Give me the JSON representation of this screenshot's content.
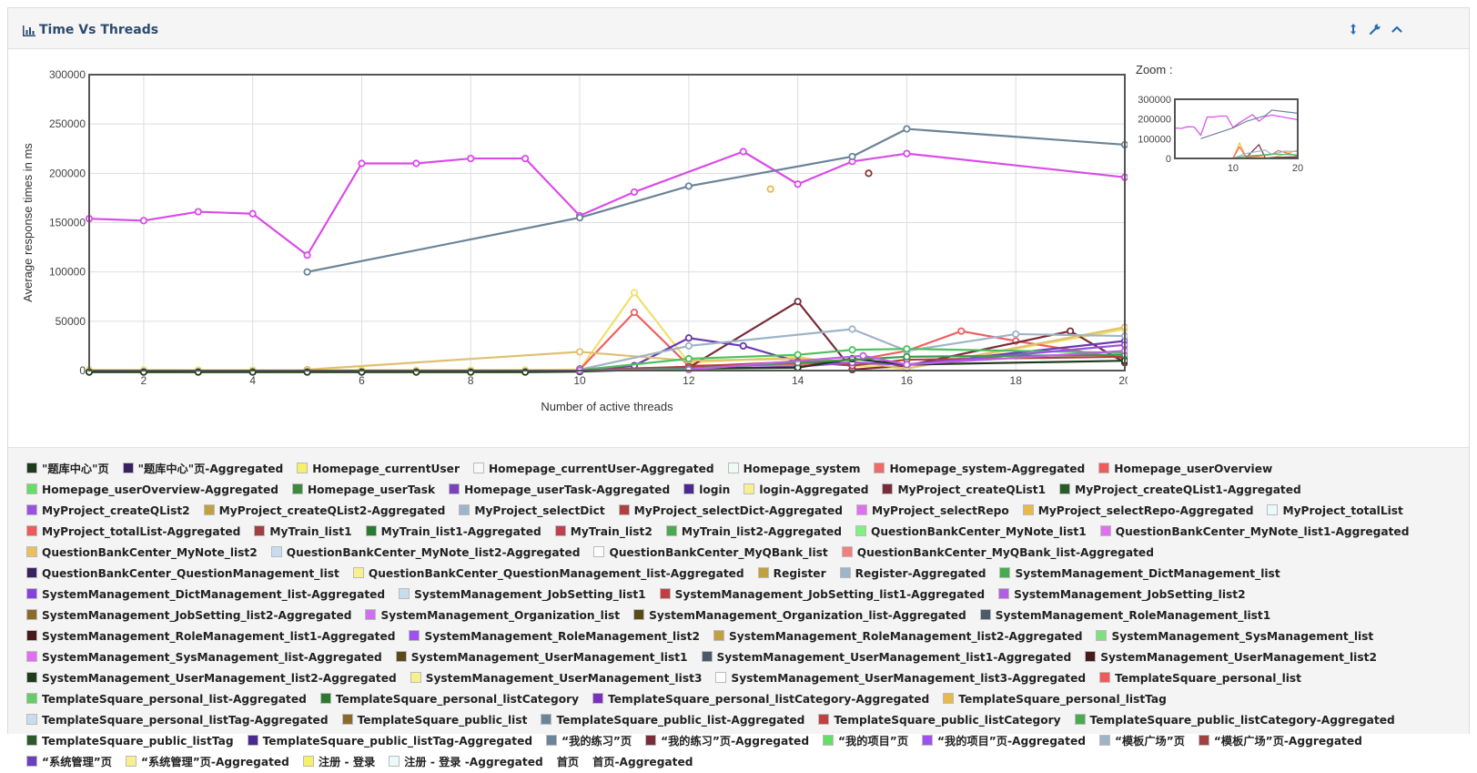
{
  "panel": {
    "title": "Time Vs Threads"
  },
  "zoom_label": "Zoom :",
  "chart_data": [
    {
      "type": "line",
      "xlabel": "Number of active threads",
      "ylabel": "Average response times in ms",
      "xlim": [
        1,
        20
      ],
      "ylim": [
        0,
        300000
      ],
      "xticks": [
        2,
        4,
        6,
        8,
        10,
        12,
        14,
        16,
        18,
        20
      ],
      "xtick_labels": [
        "2",
        "4",
        "6",
        "8",
        "10",
        "12",
        "14",
        "16",
        "18",
        "20"
      ],
      "yticks": [
        0,
        50000,
        100000,
        150000,
        200000,
        250000,
        300000
      ],
      "ytick_labels": [
        "0",
        "50000",
        "100000",
        "150000",
        "200000",
        "250000",
        "300000"
      ],
      "grid": true,
      "series": [
        {
          "name": "MyProject_selectRepo",
          "color": "#d94ce8",
          "x": [
            1,
            2,
            3,
            4,
            5,
            6,
            7,
            8,
            9,
            10,
            11,
            13,
            14,
            15,
            16,
            20
          ],
          "y": [
            154000,
            152000,
            161000,
            159000,
            117000,
            210000,
            210000,
            215000,
            215000,
            157000,
            181000,
            222000,
            189000,
            212000,
            220000,
            196000
          ]
        },
        {
          "name": "Register-Aggregated",
          "color": "#6b8498",
          "x": [
            5,
            10,
            12,
            15,
            16,
            20
          ],
          "y": [
            100000,
            155000,
            187000,
            217000,
            245000,
            229000
          ]
        },
        {
          "name": "MyProject_selectRepo-Aggregated",
          "color": "#e8b84a",
          "x": [
            13.5
          ],
          "y": [
            184000
          ]
        },
        {
          "name": "MyTrain_list1",
          "color": "#8b3333",
          "x": [
            15.3
          ],
          "y": [
            200000
          ]
        },
        {
          "name": "login-Aggregated",
          "color": "#f0e06a",
          "x": [
            1,
            2,
            3,
            4,
            5,
            6,
            7,
            8,
            9,
            10,
            11,
            12,
            14,
            15,
            16,
            20
          ],
          "y": [
            800,
            600,
            500,
            400,
            300,
            500,
            400,
            500,
            600,
            1200,
            79000,
            8000,
            14000,
            5000,
            2000,
            42000
          ]
        },
        {
          "name": "Homepage_userOverview",
          "color": "#f06060",
          "x": [
            10,
            11,
            12,
            14,
            15,
            16,
            17,
            18,
            20
          ],
          "y": [
            1000,
            59000,
            5000,
            6000,
            10000,
            20000,
            40000,
            30000,
            12000
          ]
        },
        {
          "name": "MyProject_createQList1",
          "color": "#7a2c3a",
          "x": [
            10,
            12,
            14,
            15,
            16,
            19,
            20
          ],
          "y": [
            1500,
            3000,
            70000,
            1000,
            5000,
            40000,
            8000
          ]
        },
        {
          "name": "Homepage_userTask-Aggregated",
          "color": "#6a3ab0",
          "x": [
            10,
            11,
            12,
            13,
            14,
            15,
            16,
            20
          ],
          "y": [
            1000,
            5000,
            33000,
            25000,
            9000,
            8000,
            6000,
            30000
          ]
        },
        {
          "name": "Register",
          "color": "#e0c070",
          "x": [
            5,
            10,
            12,
            14,
            15,
            16,
            20
          ],
          "y": [
            1000,
            19000,
            10000,
            12000,
            9000,
            2000,
            44000
          ]
        },
        {
          "name": "SystemManagement_JobSetting_list1",
          "color": "#9fb4c8",
          "x": [
            10,
            12,
            15,
            16,
            18,
            20
          ],
          "y": [
            1000,
            25000,
            42000,
            20000,
            37000,
            35000
          ]
        },
        {
          "name": "MyTrain_list1-Aggregated",
          "color": "#4ec060",
          "x": [
            10,
            12,
            14,
            15,
            16,
            20
          ],
          "y": [
            500,
            12000,
            16000,
            21000,
            22000,
            18000
          ]
        },
        {
          "name": "MyProject_selectDict-Aggregated",
          "color": "#b04040",
          "x": [
            10,
            12,
            14,
            15,
            16,
            20
          ],
          "y": [
            300,
            4000,
            9000,
            5000,
            11000,
            14000
          ]
        },
        {
          "name": "MyProject_createQList2",
          "color": "#9a50e0",
          "x": [
            10,
            12,
            14,
            15,
            16,
            20
          ],
          "y": [
            200,
            2000,
            4000,
            8000,
            6000,
            26000
          ]
        },
        {
          "name": "\"题库中心\"页",
          "color": "#1d3a1d",
          "x": [
            1,
            2,
            3,
            4,
            5,
            6,
            7,
            8,
            9,
            10,
            12,
            14,
            15,
            16,
            20
          ],
          "y": [
            -1500,
            -1500,
            -1500,
            -1500,
            -1500,
            -1500,
            -1500,
            -1500,
            -1500,
            -1000,
            2000,
            3000,
            12000,
            6000,
            10000
          ]
        },
        {
          "name": "SystemManagement_DictManagement_list",
          "color": "#3a9a50",
          "x": [
            10,
            12,
            14,
            16,
            20
          ],
          "y": [
            200,
            2000,
            8000,
            14000,
            16000
          ]
        },
        {
          "name": "SystemManagement_SysManagement_list-Aggregated",
          "color": "#c060e0",
          "x": [
            10,
            12,
            15.2,
            16,
            20
          ],
          "y": [
            100,
            1000,
            15000,
            6000,
            20000
          ]
        }
      ]
    },
    {
      "type": "line",
      "xlim": [
        1,
        20
      ],
      "ylim": [
        0,
        300000
      ],
      "xticks": [
        10,
        20
      ],
      "xtick_labels": [
        "10",
        "20"
      ],
      "yticks": [
        0,
        100000,
        200000,
        300000
      ],
      "ytick_labels": [
        "0",
        "100000",
        "200000",
        "300000"
      ],
      "series": [
        {
          "name": "MyProject_selectRepo",
          "color": "#d94ce8",
          "x": [
            1,
            2,
            3,
            4,
            5,
            6,
            7,
            8,
            9,
            10,
            11,
            13,
            14,
            15,
            16,
            20
          ],
          "y": [
            154000,
            152000,
            161000,
            159000,
            117000,
            210000,
            210000,
            215000,
            215000,
            157000,
            181000,
            222000,
            189000,
            212000,
            220000,
            196000
          ]
        },
        {
          "name": "Register-Aggregated",
          "color": "#6b8498",
          "x": [
            5,
            10,
            12,
            15,
            16,
            20
          ],
          "y": [
            100000,
            155000,
            187000,
            217000,
            245000,
            229000
          ]
        },
        {
          "name": "login-Aggregated",
          "color": "#f0c040",
          "x": [
            1,
            5,
            10,
            11,
            12,
            15,
            16,
            20
          ],
          "y": [
            800,
            300,
            1200,
            79000,
            8000,
            5000,
            2000,
            42000
          ]
        },
        {
          "name": "MyProject_createQList1",
          "color": "#7a2c3a",
          "x": [
            10,
            12,
            14,
            15,
            16,
            20
          ],
          "y": [
            1500,
            3000,
            70000,
            1000,
            5000,
            8000
          ]
        },
        {
          "name": "Homepage_userOverview",
          "color": "#f06060",
          "x": [
            10,
            11,
            12,
            16,
            17,
            20
          ],
          "y": [
            1000,
            59000,
            5000,
            20000,
            40000,
            12000
          ]
        },
        {
          "name": "SystemManagement_JobSetting_list1",
          "color": "#9fb4c8",
          "x": [
            10,
            12,
            15,
            16,
            18,
            20
          ],
          "y": [
            1000,
            25000,
            42000,
            20000,
            37000,
            35000
          ]
        },
        {
          "name": "MyTrain_list1-Aggregated",
          "color": "#4ec060",
          "x": [
            10,
            12,
            14,
            16,
            20
          ],
          "y": [
            500,
            12000,
            16000,
            22000,
            18000
          ]
        }
      ]
    }
  ],
  "legend": [
    {
      "label": "\"题库中心\"页",
      "color": "#1d3a1d"
    },
    {
      "label": "\"题库中心\"页-Aggregated",
      "color": "#3a2060"
    },
    {
      "label": "Homepage_currentUser",
      "color": "#f5ef6a"
    },
    {
      "label": "Homepage_currentUser-Aggregated",
      "color": "#f8f8f8"
    },
    {
      "label": "Homepage_system",
      "color": "#f0faf5"
    },
    {
      "label": "Homepage_system-Aggregated",
      "color": "#f06a6a"
    },
    {
      "label": "Homepage_userOverview",
      "color": "#f05a5a"
    },
    {
      "label": "Homepage_userOverview-Aggregated",
      "color": "#66dd66"
    },
    {
      "label": "Homepage_userTask",
      "color": "#3a8a40"
    },
    {
      "label": "Homepage_userTask-Aggregated",
      "color": "#7a40c0"
    },
    {
      "label": "login",
      "color": "#4a2a90"
    },
    {
      "label": "login-Aggregated",
      "color": "#f8f090"
    },
    {
      "label": "MyProject_createQList1",
      "color": "#7a2c3a"
    },
    {
      "label": "MyProject_createQList1-Aggregated",
      "color": "#2a5a2a"
    },
    {
      "label": "MyProject_createQList2",
      "color": "#9a50e0"
    },
    {
      "label": "MyProject_createQList2-Aggregated",
      "color": "#c0a040"
    },
    {
      "label": "MyProject_selectDict",
      "color": "#9fb4c8"
    },
    {
      "label": "MyProject_selectDict-Aggregated",
      "color": "#b04040"
    },
    {
      "label": "MyProject_selectRepo",
      "color": "#e070f0"
    },
    {
      "label": "MyProject_selectRepo-Aggregated",
      "color": "#e8b84a"
    },
    {
      "label": "MyProject_totalList",
      "color": "#e8fafa"
    },
    {
      "label": "MyProject_totalList-Aggregated",
      "color": "#f05a5a"
    },
    {
      "label": "MyTrain_list1",
      "color": "#a04040"
    },
    {
      "label": "MyTrain_list1-Aggregated",
      "color": "#2a7a30"
    },
    {
      "label": "MyTrain_list2",
      "color": "#c04050"
    },
    {
      "label": "MyTrain_list2-Aggregated",
      "color": "#4aaa50"
    },
    {
      "label": "QuestionBankCenter_MyNote_list1",
      "color": "#80f080"
    },
    {
      "label": "QuestionBankCenter_MyNote_list1-Aggregated",
      "color": "#e070f0"
    },
    {
      "label": "QuestionBankCenter_MyNote_list2",
      "color": "#e8c060"
    },
    {
      "label": "QuestionBankCenter_MyNote_list2-Aggregated",
      "color": "#c8dcf0"
    },
    {
      "label": "QuestionBankCenter_MyQBank_list",
      "color": "#ffffff"
    },
    {
      "label": "QuestionBankCenter_MyQBank_list-Aggregated",
      "color": "#f08080"
    },
    {
      "label": "QuestionBankCenter_QuestionManagement_list",
      "color": "#3a2060"
    },
    {
      "label": "QuestionBankCenter_QuestionManagement_list-Aggregated",
      "color": "#f8f090"
    },
    {
      "label": "Register",
      "color": "#c0a040"
    },
    {
      "label": "Register-Aggregated",
      "color": "#9fb4c8"
    },
    {
      "label": "SystemManagement_DictManagement_list",
      "color": "#4aaa50"
    },
    {
      "label": "SystemManagement_DictManagement_list-Aggregated",
      "color": "#8a40e0"
    },
    {
      "label": "SystemManagement_JobSetting_list1",
      "color": "#c8dcf0"
    },
    {
      "label": "SystemManagement_JobSetting_list1-Aggregated",
      "color": "#c04040"
    },
    {
      "label": "SystemManagement_JobSetting_list2",
      "color": "#b060e0"
    },
    {
      "label": "SystemManagement_JobSetting_list2-Aggregated",
      "color": "#8a6a2a"
    },
    {
      "label": "SystemManagement_Organization_list",
      "color": "#d070f0"
    },
    {
      "label": "SystemManagement_Organization_list-Aggregated",
      "color": "#5a4a1a"
    },
    {
      "label": "SystemManagement_RoleManagement_list1",
      "color": "#4a5a6a"
    },
    {
      "label": "SystemManagement_RoleManagement_list1-Aggregated",
      "color": "#4a1a1a"
    },
    {
      "label": "SystemManagement_RoleManagement_list2",
      "color": "#a050f0"
    },
    {
      "label": "SystemManagement_RoleManagement_list2-Aggregated",
      "color": "#c0a040"
    },
    {
      "label": "SystemManagement_SysManagement_list",
      "color": "#80e080"
    },
    {
      "label": "SystemManagement_SysManagement_list-Aggregated",
      "color": "#e070f0"
    },
    {
      "label": "SystemManagement_UserManagement_list1",
      "color": "#5a4a1a"
    },
    {
      "label": "SystemManagement_UserManagement_list1-Aggregated",
      "color": "#4a5a6a"
    },
    {
      "label": "SystemManagement_UserManagement_list2",
      "color": "#4a1a1a"
    },
    {
      "label": "SystemManagement_UserManagement_list2-Aggregated",
      "color": "#1d3a1d"
    },
    {
      "label": "SystemManagement_UserManagement_list3",
      "color": "#f8f090"
    },
    {
      "label": "SystemManagement_UserManagement_list3-Aggregated",
      "color": "#ffffff"
    },
    {
      "label": "TemplateSquare_personal_list",
      "color": "#f05a5a"
    },
    {
      "label": "TemplateSquare_personal_list-Aggregated",
      "color": "#66cc66"
    },
    {
      "label": "TemplateSquare_personal_listCategory",
      "color": "#2a7a30"
    },
    {
      "label": "TemplateSquare_personal_listCategory-Aggregated",
      "color": "#7a30c0"
    },
    {
      "label": "TemplateSquare_personal_listTag",
      "color": "#e8b84a"
    },
    {
      "label": "TemplateSquare_personal_listTag-Aggregated",
      "color": "#c8dcf0"
    },
    {
      "label": "TemplateSquare_public_list",
      "color": "#8a6a2a"
    },
    {
      "label": "TemplateSquare_public_list-Aggregated",
      "color": "#6b8498"
    },
    {
      "label": "TemplateSquare_public_listCategory",
      "color": "#c04040"
    },
    {
      "label": "TemplateSquare_public_listCategory-Aggregated",
      "color": "#4aaa50"
    },
    {
      "label": "TemplateSquare_public_listTag",
      "color": "#2a5a2a"
    },
    {
      "label": "TemplateSquare_public_listTag-Aggregated",
      "color": "#4a2a90"
    },
    {
      "label": "“我的练习”页",
      "color": "#6b8498"
    },
    {
      "label": "“我的练习”页-Aggregated",
      "color": "#7a2c3a"
    },
    {
      "label": "“我的项目”页",
      "color": "#66dd66"
    },
    {
      "label": "“我的项目”页-Aggregated",
      "color": "#a050f0"
    },
    {
      "label": "“模板广场”页",
      "color": "#9fb4c8"
    },
    {
      "label": "“模板广场”页-Aggregated",
      "color": "#a04040"
    },
    {
      "label": "“系统管理”页",
      "color": "#6a40c0"
    },
    {
      "label": "“系统管理”页-Aggregated",
      "color": "#f8f090"
    },
    {
      "label": "注册 - 登录",
      "color": "#f5ef6a"
    },
    {
      "label": "注册 - 登录 -Aggregated",
      "color": "#e8fafa"
    },
    {
      "label": "首页",
      "color": ""
    },
    {
      "label": "首页-Aggregated",
      "color": ""
    }
  ]
}
